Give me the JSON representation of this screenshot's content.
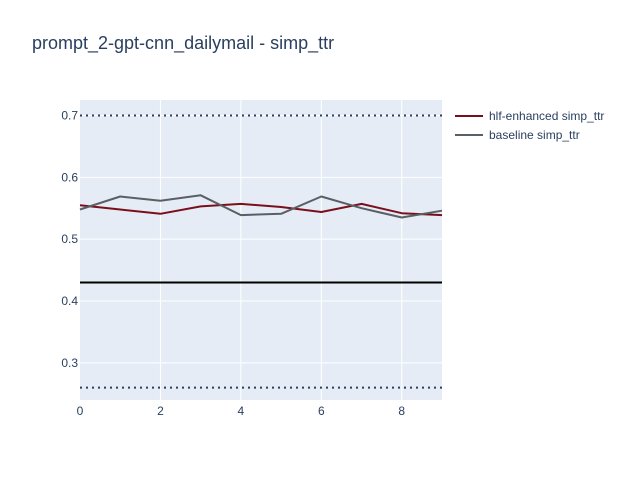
{
  "chart_data": {
    "type": "line",
    "title": "prompt_2-gpt-cnn_dailymail - simp_ttr",
    "xlabel": "",
    "ylabel": "",
    "xlim": [
      0,
      9
    ],
    "ylim": [
      0.24,
      0.725
    ],
    "x_ticks": [
      0,
      2,
      4,
      6,
      8
    ],
    "x_tick_labels": [
      "0",
      "2",
      "4",
      "6",
      "8"
    ],
    "y_ticks": [
      0.3,
      0.4,
      0.5,
      0.6,
      0.7
    ],
    "y_tick_labels": [
      "0.3",
      "0.4",
      "0.5",
      "0.6",
      "0.7"
    ],
    "grid": true,
    "legend_position": "top-right",
    "plot_background": "#e5ecf6",
    "series": [
      {
        "name": "hlf-enhanced simp_ttr",
        "color": "#7a0f1c",
        "x": [
          0,
          1,
          2,
          3,
          4,
          5,
          6,
          7,
          8,
          9
        ],
        "values": [
          0.555,
          0.548,
          0.541,
          0.553,
          0.557,
          0.552,
          0.544,
          0.557,
          0.542,
          0.539
        ]
      },
      {
        "name": "baseline simp_ttr",
        "color": "#5a5f63",
        "x": [
          0,
          1,
          2,
          3,
          4,
          5,
          6,
          7,
          8,
          9
        ],
        "values": [
          0.548,
          0.569,
          0.562,
          0.571,
          0.539,
          0.541,
          0.569,
          0.55,
          0.535,
          0.546
        ]
      }
    ],
    "reference_lines": [
      {
        "y": 0.7,
        "style": "dotted",
        "color": "#2a3f5f"
      },
      {
        "y": 0.43,
        "style": "solid",
        "color": "#000000"
      },
      {
        "y": 0.26,
        "style": "dotted",
        "color": "#2a3f5f"
      }
    ]
  }
}
